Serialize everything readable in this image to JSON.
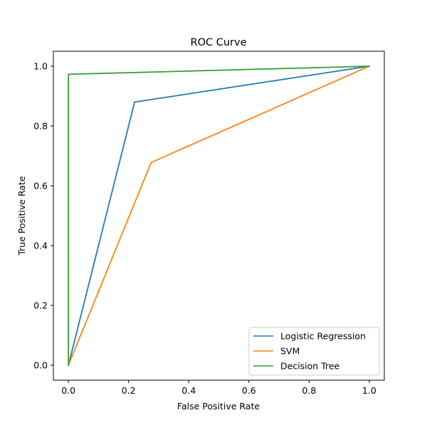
{
  "chart_data": {
    "type": "line",
    "title": "ROC Curve",
    "xlabel": "False Positive Rate",
    "ylabel": "True Positive Rate",
    "xlim": [
      -0.05,
      1.05
    ],
    "ylim": [
      -0.05,
      1.05
    ],
    "xticks": [
      0.0,
      0.2,
      0.4,
      0.6,
      0.8,
      1.0
    ],
    "xtick_labels": [
      "0.0",
      "0.2",
      "0.4",
      "0.6",
      "0.8",
      "1.0"
    ],
    "yticks": [
      0.0,
      0.2,
      0.4,
      0.6,
      0.8,
      1.0
    ],
    "ytick_labels": [
      "0.0",
      "0.2",
      "0.4",
      "0.6",
      "0.8",
      "1.0"
    ],
    "grid": false,
    "legend_position": "lower-right",
    "series": [
      {
        "name": "Logistic Regression",
        "color": "#1f77b4",
        "x": [
          0.0,
          0.22,
          1.0
        ],
        "y": [
          0.0,
          0.88,
          1.0
        ]
      },
      {
        "name": "SVM",
        "color": "#ff7f0e",
        "x": [
          0.0,
          0.275,
          1.0
        ],
        "y": [
          0.0,
          0.678,
          1.0
        ]
      },
      {
        "name": "Decision Tree",
        "color": "#2ca02c",
        "x": [
          0.0,
          0.0,
          1.0
        ],
        "y": [
          0.0,
          0.973,
          1.0
        ]
      }
    ]
  }
}
